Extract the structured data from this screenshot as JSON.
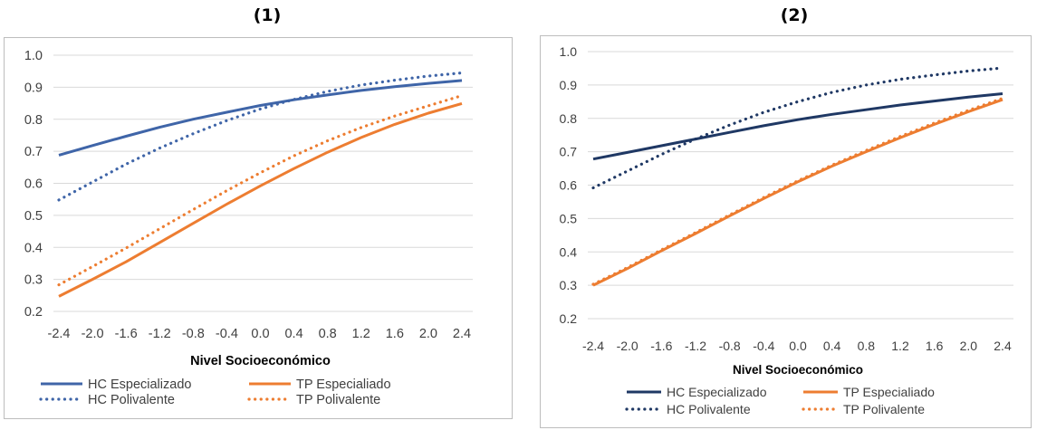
{
  "chart_data": [
    {
      "type": "line",
      "title": "(1)",
      "xlabel": "Nivel Socioeconómico",
      "ylabel": "",
      "x": [
        -2.4,
        -2.0,
        -1.6,
        -1.2,
        -0.8,
        -0.4,
        0.0,
        0.4,
        0.8,
        1.2,
        1.6,
        2.0,
        2.4
      ],
      "x_tick_labels": [
        "-2.4",
        "-2.0",
        "-1.6",
        "-1.2",
        "-0.8",
        "-0.4",
        "0.0",
        "0.4",
        "0.8",
        "1.2",
        "1.6",
        "2.0",
        "2.4"
      ],
      "ylim": [
        0.2,
        1.0
      ],
      "y_tick_labels": [
        "1.0",
        "0.9",
        "0.8",
        "0.7",
        "0.6",
        "0.5",
        "0.4",
        "0.3",
        "0.2"
      ],
      "grid": true,
      "legend_position": "bottom",
      "series": [
        {
          "name": "HC Especializado",
          "color": "#3f65a8",
          "style": "solid",
          "values": [
            0.688,
            0.718,
            0.747,
            0.775,
            0.8,
            0.822,
            0.843,
            0.861,
            0.876,
            0.89,
            0.902,
            0.912,
            0.921
          ]
        },
        {
          "name": "TP Especialiado",
          "color": "#ed7d31",
          "style": "solid",
          "values": [
            0.247,
            0.3,
            0.355,
            0.415,
            0.475,
            0.535,
            0.592,
            0.646,
            0.697,
            0.743,
            0.784,
            0.819,
            0.849
          ]
        },
        {
          "name": "HC Polivalente",
          "color": "#3f65a8",
          "style": "dotted",
          "values": [
            0.548,
            0.604,
            0.66,
            0.71,
            0.755,
            0.796,
            0.832,
            0.862,
            0.887,
            0.907,
            0.922,
            0.935,
            0.945
          ]
        },
        {
          "name": "TP Polivalente",
          "color": "#ed7d31",
          "style": "dotted",
          "values": [
            0.283,
            0.34,
            0.398,
            0.458,
            0.518,
            0.577,
            0.633,
            0.686,
            0.733,
            0.774,
            0.81,
            0.842,
            0.874
          ]
        }
      ]
    },
    {
      "type": "line",
      "title": "(2)",
      "xlabel": "Nivel Socioeconómico",
      "ylabel": "",
      "x": [
        -2.4,
        -2.0,
        -1.6,
        -1.2,
        -0.8,
        -0.4,
        0.0,
        0.4,
        0.8,
        1.2,
        1.6,
        2.0,
        2.4
      ],
      "x_tick_labels": [
        "-2.4",
        "-2.0",
        "-1.6",
        "-1.2",
        "-0.8",
        "-0.4",
        "0.0",
        "0.4",
        "0.8",
        "1.2",
        "1.6",
        "2.0",
        "2.4"
      ],
      "ylim": [
        0.2,
        1.0
      ],
      "y_tick_labels": [
        "1.0",
        "0.9",
        "0.8",
        "0.7",
        "0.6",
        "0.5",
        "0.4",
        "0.3",
        "0.2"
      ],
      "grid": true,
      "legend_position": "bottom",
      "series": [
        {
          "name": "HC Especializado",
          "color": "#1f3864",
          "style": "solid",
          "values": [
            0.678,
            0.698,
            0.718,
            0.738,
            0.758,
            0.778,
            0.796,
            0.812,
            0.826,
            0.84,
            0.852,
            0.864,
            0.874
          ]
        },
        {
          "name": "TP Especialiado",
          "color": "#ed7d31",
          "style": "solid",
          "values": [
            0.3,
            0.35,
            0.403,
            0.455,
            0.508,
            0.56,
            0.61,
            0.657,
            0.7,
            0.742,
            0.782,
            0.82,
            0.856
          ]
        },
        {
          "name": "HC Polivalente",
          "color": "#1f3864",
          "style": "dotted",
          "values": [
            0.592,
            0.642,
            0.692,
            0.738,
            0.78,
            0.818,
            0.85,
            0.878,
            0.9,
            0.917,
            0.93,
            0.942,
            0.951
          ]
        },
        {
          "name": "TP Polivalente",
          "color": "#ed7d31",
          "style": "dotted",
          "values": [
            0.303,
            0.353,
            0.406,
            0.458,
            0.511,
            0.563,
            0.613,
            0.66,
            0.704,
            0.746,
            0.786,
            0.824,
            0.86
          ]
        }
      ]
    }
  ]
}
